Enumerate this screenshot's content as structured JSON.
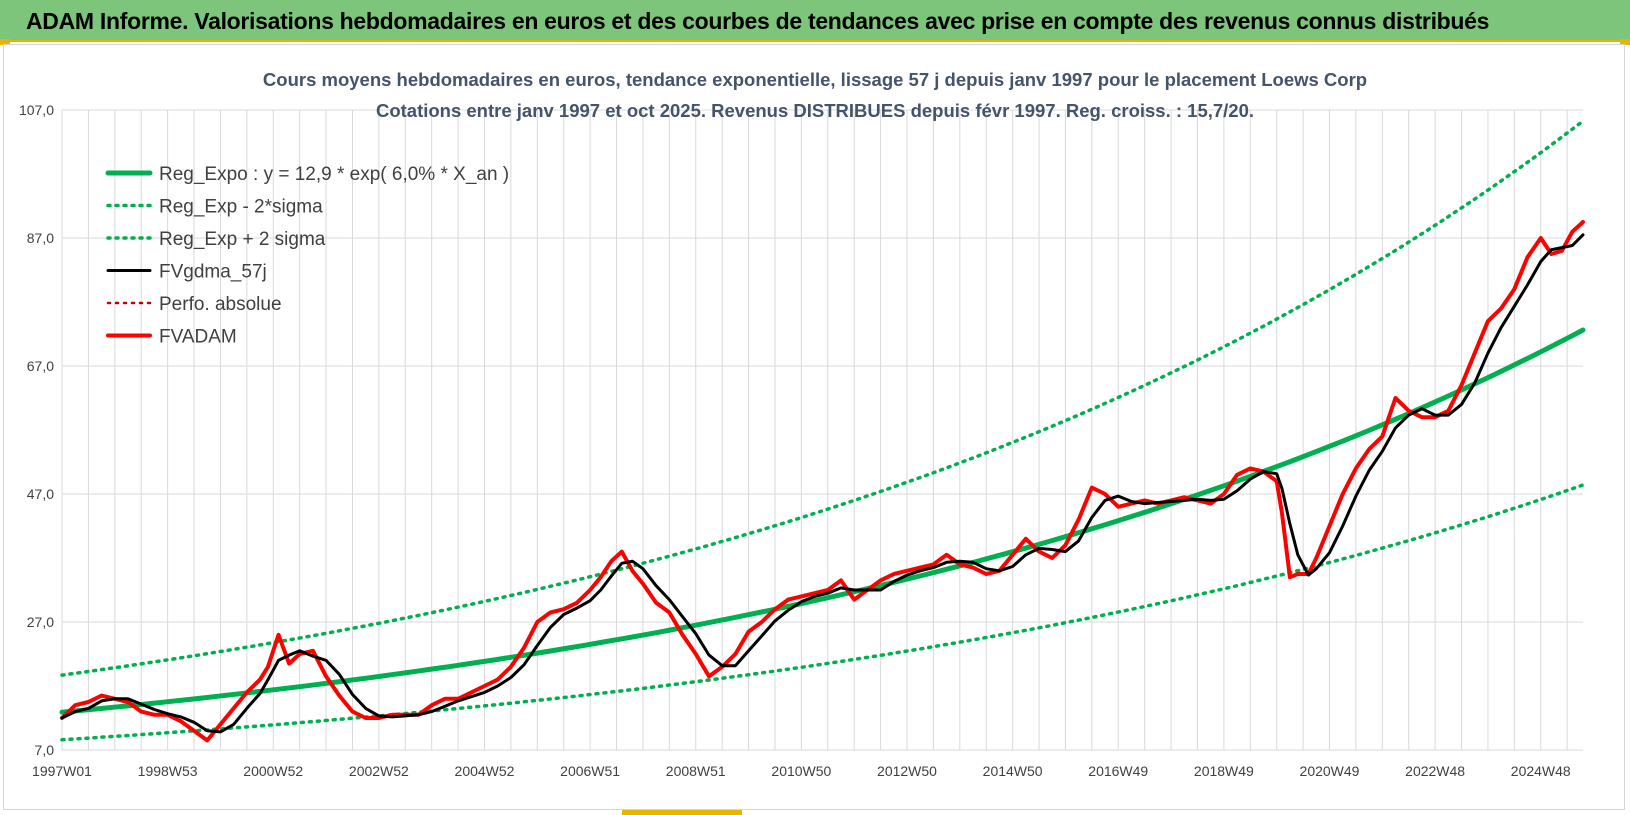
{
  "header": {
    "title": "ADAM Informe. Valorisations hebdomadaires en euros et des courbes de tendances avec prise en compte des revenus connus distribués"
  },
  "colors": {
    "banner": "#7dc57a",
    "accent": "#e8b400",
    "trend": "#00b050",
    "smooth": "#000000",
    "price": "#ff0000",
    "grid": "#d9d9d9",
    "title": "#44546a"
  },
  "chart_data": {
    "type": "line",
    "title": "Cours moyens hebdomadaires en euros, tendance exponentielle, lissage 57 j depuis janv 1997 pour le placement Loews Corp",
    "subtitle": "Cotations entre janv 1997 et oct 2025. Revenus DISTRIBUES depuis févr 1997. Reg. croiss. : 15,7/20.",
    "xlabel": "",
    "ylabel": "",
    "x_range": [
      1997.0,
      2025.8
    ],
    "ylim": [
      7.0,
      107.0
    ],
    "y_ticks": [
      7.0,
      27.0,
      47.0,
      67.0,
      87.0,
      107.0
    ],
    "y_tick_labels": [
      "7,0",
      "27,0",
      "47,0",
      "67,0",
      "87,0",
      "107,0"
    ],
    "x_ticks": [
      1997.0,
      1999.0,
      2001.0,
      2003.0,
      2005.0,
      2007.0,
      2009.0,
      2011.0,
      2013.0,
      2015.0,
      2017.0,
      2019.0,
      2021.0,
      2023.0,
      2025.0
    ],
    "x_tick_labels": [
      "1997W01",
      "1998W53",
      "2000W52",
      "2002W52",
      "2004W52",
      "2006W51",
      "2008W51",
      "2010W50",
      "2012W50",
      "2014W50",
      "2016W49",
      "2018W49",
      "2020W49",
      "2022W48",
      "2024W48"
    ],
    "grid": true,
    "legend_position": "top-left",
    "legend": [
      {
        "label": "Reg_Expo : y = 12,9 * exp( 6,0% *  X_an )",
        "color": "#00b050",
        "style": "solid",
        "width": 5
      },
      {
        "label": "Reg_Exp - 2*sigma",
        "color": "#00b050",
        "style": "dotted",
        "width": 3.5
      },
      {
        "label": "Reg_Exp + 2 sigma",
        "color": "#00b050",
        "style": "dotted",
        "width": 3.5
      },
      {
        "label": "FVgdma_57j",
        "color": "#000000",
        "style": "solid",
        "width": 3
      },
      {
        "label": "Perfo. absolue",
        "color": "#c00000",
        "style": "dotted",
        "width": 2.5
      },
      {
        "label": "FVADAM",
        "color": "#ff0000",
        "style": "solid",
        "width": 4
      }
    ],
    "series": [
      {
        "name": "Reg_Expo : y = 12,9 * exp( 6,0% *  X_an )",
        "kind": "exp",
        "a": 12.9,
        "b": 0.06,
        "x_start": 1997.0,
        "x_end": 2025.8
      },
      {
        "name": "Reg_Exp - 2*sigma",
        "kind": "exp",
        "a": 8.6,
        "b": 0.06,
        "x_start": 1997.0,
        "x_end": 2025.8
      },
      {
        "name": "Reg_Exp + 2 sigma",
        "kind": "exp",
        "a": 18.7,
        "b": 0.06,
        "x_start": 1997.0,
        "x_end": 2025.8
      },
      {
        "name": "FVADAM",
        "kind": "points",
        "x": [
          1997.0,
          1997.25,
          1997.5,
          1997.75,
          1998.0,
          1998.25,
          1998.5,
          1998.75,
          1999.0,
          1999.25,
          1999.5,
          1999.75,
          2000.0,
          2000.25,
          2000.5,
          2000.75,
          2000.9,
          2001.1,
          2001.3,
          2001.5,
          2001.75,
          2002.0,
          2002.25,
          2002.5,
          2002.75,
          2003.0,
          2003.25,
          2003.5,
          2003.75,
          2004.0,
          2004.25,
          2004.5,
          2004.75,
          2005.0,
          2005.25,
          2005.5,
          2005.75,
          2006.0,
          2006.25,
          2006.5,
          2006.75,
          2007.0,
          2007.2,
          2007.4,
          2007.6,
          2007.8,
          2008.0,
          2008.25,
          2008.5,
          2008.75,
          2009.0,
          2009.25,
          2009.5,
          2009.75,
          2010.0,
          2010.25,
          2010.5,
          2010.75,
          2011.0,
          2011.25,
          2011.5,
          2011.75,
          2012.0,
          2012.25,
          2012.5,
          2012.75,
          2013.0,
          2013.25,
          2013.5,
          2013.75,
          2014.0,
          2014.25,
          2014.5,
          2014.75,
          2015.0,
          2015.25,
          2015.5,
          2015.75,
          2016.0,
          2016.25,
          2016.5,
          2016.75,
          2017.0,
          2017.25,
          2017.5,
          2017.75,
          2018.0,
          2018.25,
          2018.5,
          2018.75,
          2019.0,
          2019.25,
          2019.5,
          2019.75,
          2020.0,
          2020.1,
          2020.25,
          2020.4,
          2020.6,
          2020.75,
          2021.0,
          2021.25,
          2021.5,
          2021.75,
          2022.0,
          2022.25,
          2022.5,
          2022.75,
          2023.0,
          2023.25,
          2023.5,
          2023.75,
          2024.0,
          2024.25,
          2024.5,
          2024.75,
          2025.0,
          2025.2,
          2025.4,
          2025.6,
          2025.8
        ],
        "y": [
          12.0,
          14.0,
          14.5,
          15.5,
          15.0,
          14.5,
          13.0,
          12.5,
          12.5,
          11.5,
          10.0,
          8.5,
          11.0,
          13.5,
          16.0,
          18.0,
          20.0,
          25.0,
          20.5,
          22.0,
          22.5,
          18.5,
          15.5,
          13.0,
          12.0,
          12.0,
          12.5,
          12.5,
          12.5,
          14.0,
          15.0,
          15.0,
          16.0,
          17.0,
          18.0,
          20.0,
          23.0,
          27.0,
          28.5,
          29.0,
          30.0,
          32.0,
          34.0,
          36.5,
          38.0,
          35.0,
          33.0,
          30.0,
          28.5,
          25.0,
          22.0,
          18.5,
          20.0,
          22.0,
          25.5,
          27.0,
          29.0,
          30.5,
          31.0,
          31.5,
          32.0,
          33.5,
          30.5,
          32.0,
          33.5,
          34.5,
          35.0,
          35.5,
          36.0,
          37.5,
          36.0,
          35.5,
          34.5,
          35.0,
          37.5,
          40.0,
          38.0,
          37.0,
          39.0,
          43.0,
          48.0,
          47.0,
          45.0,
          45.5,
          46.0,
          45.5,
          46.0,
          46.5,
          46.0,
          45.5,
          47.0,
          50.0,
          51.0,
          50.5,
          49.0,
          44.0,
          34.0,
          34.5,
          34.5,
          37.0,
          42.0,
          47.0,
          51.0,
          54.0,
          56.0,
          62.0,
          60.0,
          59.0,
          59.0,
          60.0,
          64.0,
          69.0,
          74.0,
          76.0,
          79.0,
          84.0,
          87.0,
          84.5,
          85.0,
          88.0,
          89.5
        ]
      },
      {
        "name": "FVgdma_57j",
        "kind": "smooth_of",
        "source": "FVADAM",
        "window": 3
      }
    ]
  }
}
